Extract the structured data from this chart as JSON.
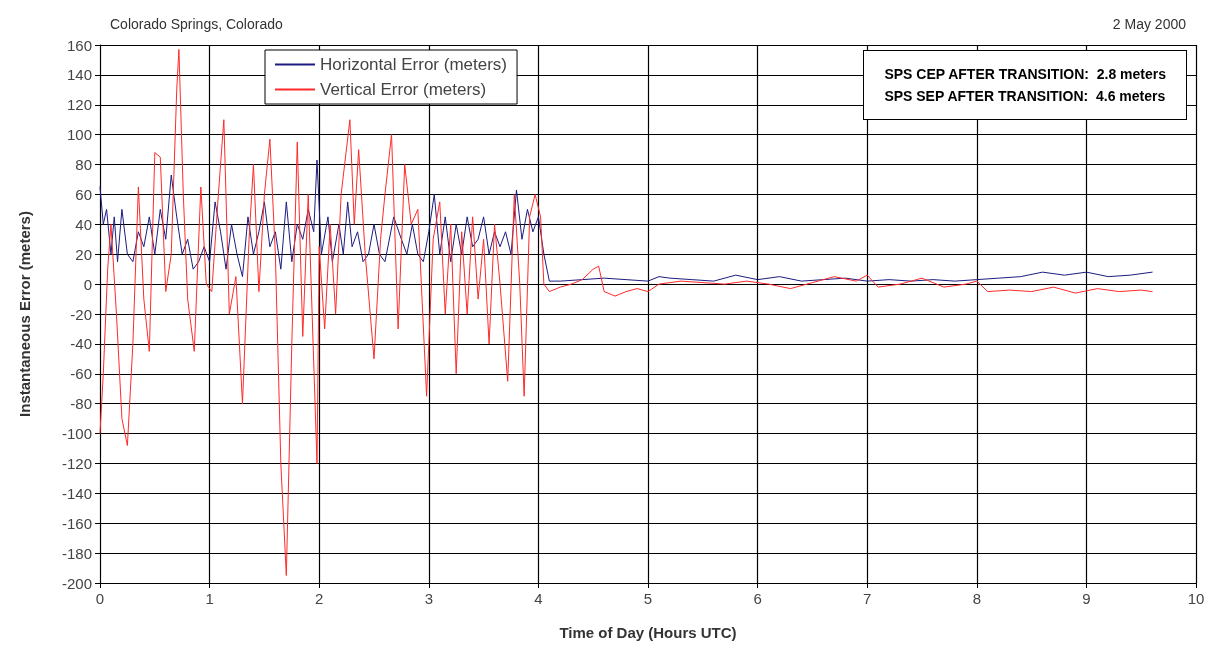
{
  "chart_data": {
    "type": "line",
    "xlabel": "Time of Day (Hours UTC)",
    "ylabel": "Instantaneous Error (meters)",
    "annotations": [
      "Colorado Springs, Colorado",
      "2 May 2000",
      "SPS CEP AFTER TRANSITION:  2.8 meters",
      "SPS SEP AFTER TRANSITION:  4.6 meters"
    ],
    "xlim": [
      0,
      10
    ],
    "xticks": [
      0,
      1,
      2,
      3,
      4,
      5,
      6,
      7,
      8,
      9,
      10
    ],
    "ylim": [
      -200,
      160
    ],
    "yticks": [
      -200,
      -180,
      -160,
      -140,
      -120,
      -100,
      -80,
      -60,
      -40,
      -20,
      0,
      20,
      40,
      60,
      80,
      100,
      120,
      140,
      160
    ],
    "grid": true,
    "legend": "top left",
    "marker": "none",
    "line_style": "solid",
    "series": [
      {
        "name": "Horizontal Error (meters)",
        "color": "#1c1c80",
        "x": [
          0,
          0.03,
          0.06,
          0.1,
          0.13,
          0.16,
          0.2,
          0.25,
          0.3,
          0.35,
          0.4,
          0.45,
          0.5,
          0.55,
          0.6,
          0.65,
          0.7,
          0.75,
          0.8,
          0.85,
          0.9,
          0.95,
          1.0,
          1.05,
          1.1,
          1.15,
          1.2,
          1.25,
          1.3,
          1.35,
          1.4,
          1.45,
          1.5,
          1.55,
          1.6,
          1.65,
          1.7,
          1.75,
          1.8,
          1.85,
          1.9,
          1.95,
          1.98,
          2.02,
          2.08,
          2.12,
          2.18,
          2.22,
          2.26,
          2.3,
          2.35,
          2.4,
          2.45,
          2.5,
          2.55,
          2.6,
          2.68,
          2.75,
          2.8,
          2.85,
          2.9,
          2.95,
          3.0,
          3.05,
          3.1,
          3.15,
          3.2,
          3.25,
          3.3,
          3.35,
          3.4,
          3.45,
          3.5,
          3.55,
          3.6,
          3.65,
          3.7,
          3.75,
          3.8,
          3.85,
          3.9,
          3.95,
          4.0,
          4.05,
          4.1,
          4.2,
          4.4,
          4.6,
          4.8,
          5.0,
          5.1,
          5.2,
          5.4,
          5.6,
          5.8,
          6.0,
          6.2,
          6.4,
          6.6,
          6.8,
          7.0,
          7.2,
          7.4,
          7.6,
          7.8,
          8.0,
          8.2,
          8.4,
          8.6,
          8.8,
          9.0,
          9.2,
          9.4,
          9.6
        ],
        "values": [
          65,
          40,
          50,
          20,
          45,
          15,
          50,
          20,
          15,
          35,
          25,
          45,
          20,
          50,
          30,
          73,
          45,
          20,
          30,
          10,
          15,
          25,
          15,
          55,
          35,
          10,
          40,
          20,
          5,
          45,
          20,
          35,
          55,
          25,
          35,
          10,
          55,
          15,
          40,
          30,
          50,
          35,
          83,
          20,
          45,
          15,
          40,
          20,
          55,
          25,
          35,
          15,
          20,
          40,
          20,
          15,
          45,
          30,
          20,
          40,
          20,
          15,
          35,
          60,
          20,
          45,
          15,
          40,
          20,
          45,
          25,
          30,
          45,
          20,
          35,
          25,
          35,
          20,
          63,
          30,
          50,
          35,
          45,
          20,
          2,
          2,
          3,
          4,
          3,
          2,
          5,
          4,
          3,
          2,
          6,
          3,
          5,
          2,
          3,
          4,
          2,
          3,
          2,
          3,
          2,
          3,
          4,
          5,
          8,
          6,
          8,
          5,
          6,
          8
        ]
      },
      {
        "name": "Vertical Error (meters)",
        "color": "#ff2a2a",
        "x": [
          0,
          0.03,
          0.07,
          0.1,
          0.15,
          0.2,
          0.25,
          0.3,
          0.35,
          0.4,
          0.45,
          0.5,
          0.55,
          0.6,
          0.65,
          0.7,
          0.72,
          0.76,
          0.8,
          0.86,
          0.92,
          0.97,
          1.02,
          1.08,
          1.13,
          1.18,
          1.24,
          1.3,
          1.36,
          1.4,
          1.45,
          1.5,
          1.55,
          1.6,
          1.65,
          1.7,
          1.75,
          1.8,
          1.85,
          1.9,
          1.98,
          2.0,
          2.05,
          2.1,
          2.15,
          2.2,
          2.28,
          2.32,
          2.36,
          2.42,
          2.5,
          2.56,
          2.6,
          2.66,
          2.72,
          2.78,
          2.84,
          2.9,
          2.98,
          3.04,
          3.1,
          3.15,
          3.2,
          3.25,
          3.3,
          3.35,
          3.4,
          3.45,
          3.5,
          3.55,
          3.6,
          3.65,
          3.72,
          3.78,
          3.83,
          3.87,
          3.92,
          3.97,
          4.02,
          4.05,
          4.1,
          4.2,
          4.3,
          4.4,
          4.5,
          4.55,
          4.6,
          4.7,
          4.8,
          4.9,
          5.0,
          5.1,
          5.3,
          5.5,
          5.7,
          5.9,
          6.1,
          6.3,
          6.5,
          6.7,
          6.9,
          7.0,
          7.1,
          7.3,
          7.5,
          7.7,
          7.9,
          8.0,
          8.1,
          8.3,
          8.5,
          8.7,
          8.9,
          9.1,
          9.3,
          9.5,
          9.6
        ],
        "values": [
          -100,
          -60,
          10,
          40,
          -20,
          -90,
          -108,
          -40,
          65,
          -10,
          -45,
          88,
          85,
          -5,
          20,
          130,
          157,
          60,
          -10,
          -45,
          65,
          0,
          -5,
          60,
          110,
          -20,
          5,
          -80,
          30,
          80,
          -5,
          60,
          97,
          20,
          -120,
          -195,
          -40,
          95,
          -35,
          60,
          -120,
          25,
          -30,
          40,
          -20,
          60,
          110,
          40,
          90,
          20,
          -50,
          30,
          60,
          100,
          -30,
          80,
          40,
          50,
          -75,
          30,
          55,
          -20,
          40,
          -60,
          35,
          -20,
          45,
          -10,
          30,
          -40,
          40,
          0,
          -65,
          60,
          0,
          -75,
          45,
          60,
          45,
          0,
          -5,
          -2,
          0,
          3,
          10,
          12,
          -5,
          -8,
          -5,
          -3,
          -5,
          0,
          2,
          1,
          0,
          2,
          0,
          -3,
          1,
          5,
          2,
          6,
          -2,
          0,
          4,
          -2,
          0,
          2,
          -5,
          -4,
          -5,
          -2,
          -6,
          -3,
          -5,
          -4,
          -5
        ]
      }
    ]
  }
}
